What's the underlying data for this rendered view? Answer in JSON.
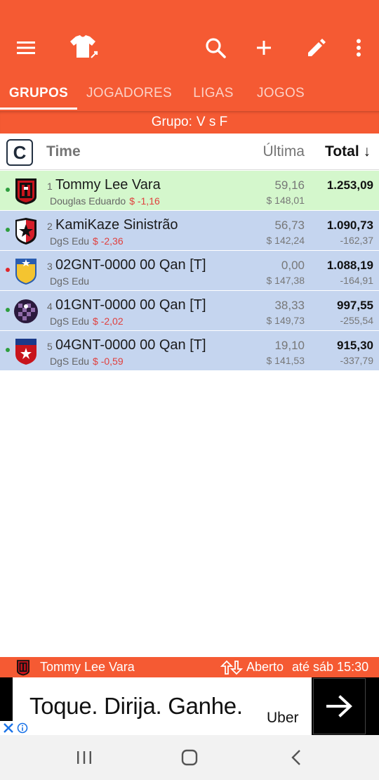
{
  "toolbar": {
    "menu_icon": "menu-icon",
    "logo_icon": "shirt-icon",
    "search_icon": "search-icon",
    "add_icon": "plus-icon",
    "edit_icon": "pencil-icon",
    "more_icon": "more-vertical-icon"
  },
  "tabs": [
    {
      "label": "GRUPOS",
      "active": true
    },
    {
      "label": "JOGADORES",
      "active": false
    },
    {
      "label": "LIGAS",
      "active": false
    },
    {
      "label": "JOGOS",
      "active": false
    }
  ],
  "group": {
    "label": "Grupo:",
    "name": "V s F"
  },
  "table_header": {
    "badge": "C",
    "team": "Time",
    "last": "Última",
    "total": "Total",
    "sort_arrow": "↓"
  },
  "rows": [
    {
      "rank": "1",
      "name": "Tommy Lee Vara",
      "owner": "Douglas Eduardo",
      "delta": "$ -1,16",
      "last": "59,16",
      "price": "$ 148,01",
      "total": "1.253,09",
      "diff": "",
      "status_color": "#2e9e3e"
    },
    {
      "rank": "2",
      "name": "KamiKaze Sinistrão",
      "owner": "DgS Edu",
      "delta": "$ -2,36",
      "last": "56,73",
      "price": "$ 142,24",
      "total": "1.090,73",
      "diff": "-162,37",
      "status_color": "#2e9e3e"
    },
    {
      "rank": "3",
      "name": "02GNT-0000 00 Qan [T]",
      "owner": "DgS Edu",
      "delta": "",
      "last": "0,00",
      "price": "$ 147,38",
      "total": "1.088,19",
      "diff": "-164,91",
      "status_color": "#e0262a"
    },
    {
      "rank": "4",
      "name": "01GNT-0000 00 Qan [T]",
      "owner": "DgS Edu",
      "delta": "$ -2,02",
      "last": "38,33",
      "price": "$ 149,73",
      "total": "997,55",
      "diff": "-255,54",
      "status_color": "#2e9e3e"
    },
    {
      "rank": "5",
      "name": "04GNT-0000 00 Qan [T]",
      "owner": "DgS Edu",
      "delta": "$ -0,59",
      "last": "19,10",
      "price": "$ 141,53",
      "total": "915,30",
      "diff": "-337,79",
      "status_color": "#2e9e3e"
    }
  ],
  "statusbar": {
    "team": "Tommy Lee Vara",
    "status": "Aberto",
    "until": "até sáb 15:30"
  },
  "ad": {
    "text": "Toque. Dirija. Ganhe.",
    "brand": "Uber"
  },
  "colors": {
    "brand": "#f55a33",
    "row_leader": "#d4f7cc",
    "row_other": "#c5d5ef",
    "negative": "#e0403e"
  }
}
